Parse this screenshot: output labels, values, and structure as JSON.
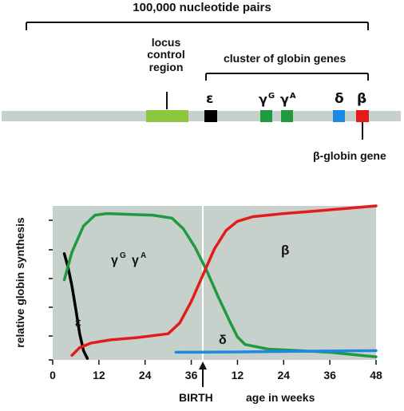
{
  "top_diagram": {
    "scale_label": "100,000 nucleotide pairs",
    "locus_control_label": [
      "locus",
      "control",
      "region"
    ],
    "cluster_label": "cluster of globin genes",
    "beta_globin_gene_label": "β-globin gene",
    "genes": [
      {
        "symbol": "ε",
        "superscript": "",
        "color": "#000000"
      },
      {
        "symbol": "γ",
        "superscript": "G",
        "color": "#1f9a3e"
      },
      {
        "symbol": "γ",
        "superscript": "A",
        "color": "#1f9a3e"
      },
      {
        "symbol": "δ",
        "superscript": "",
        "color": "#1e88e5"
      },
      {
        "symbol": "β",
        "superscript": "",
        "color": "#e41b1b"
      }
    ],
    "locus_color": "#8dc63f",
    "dna_color": "#c7d1cc"
  },
  "chart": {
    "y_axis_label": "relative globin synthesis",
    "birth_label": "BIRTH",
    "age_label": "age in weeks",
    "annotations": {
      "gamma_g_symbol": "γ",
      "gamma_g_sup": "G",
      "gamma_a_symbol": "γ",
      "gamma_a_sup": "A",
      "beta_symbol": "β",
      "delta_symbol": "δ",
      "epsilon_symbol": "ε"
    }
  },
  "chart_data": {
    "type": "line",
    "xlabel": "age in weeks",
    "ylabel": "relative globin synthesis",
    "xlim": [
      0,
      84
    ],
    "ylim": [
      0,
      100
    ],
    "x_tick_labels": [
      "0",
      "12",
      "24",
      "36",
      "12",
      "24",
      "36",
      "48"
    ],
    "birth_marker_week": 36,
    "series": [
      {
        "name": "ε",
        "color": "#000000",
        "points": [
          [
            3,
            69
          ],
          [
            4,
            60
          ],
          [
            5,
            48
          ],
          [
            6,
            33
          ],
          [
            7,
            17
          ],
          [
            8,
            6
          ],
          [
            9,
            1
          ]
        ]
      },
      {
        "name": "γG γA",
        "color": "#1f9a3e",
        "points": [
          [
            3,
            52
          ],
          [
            5,
            70
          ],
          [
            8,
            87
          ],
          [
            11,
            94
          ],
          [
            14,
            95
          ],
          [
            20,
            94.5
          ],
          [
            26,
            94
          ],
          [
            31,
            92
          ],
          [
            34,
            85
          ],
          [
            37,
            73
          ],
          [
            40,
            58
          ],
          [
            43,
            41
          ],
          [
            46,
            25
          ],
          [
            48,
            15
          ],
          [
            50,
            10
          ],
          [
            56,
            7
          ],
          [
            64,
            6
          ],
          [
            72,
            5
          ],
          [
            80,
            3
          ],
          [
            84,
            2
          ]
        ]
      },
      {
        "name": "β",
        "color": "#e41b1b",
        "points": [
          [
            5,
            3
          ],
          [
            7,
            8
          ],
          [
            10,
            11
          ],
          [
            15,
            13
          ],
          [
            22,
            14.5
          ],
          [
            30,
            17
          ],
          [
            33,
            24
          ],
          [
            36,
            38
          ],
          [
            39,
            55
          ],
          [
            42,
            72
          ],
          [
            45,
            84
          ],
          [
            48,
            90
          ],
          [
            52,
            93
          ],
          [
            60,
            95
          ],
          [
            70,
            97
          ],
          [
            84,
            100
          ]
        ]
      },
      {
        "name": "δ",
        "color": "#1e88e5",
        "points": [
          [
            32,
            5
          ],
          [
            48,
            5.2
          ],
          [
            60,
            5.5
          ],
          [
            72,
            5.8
          ],
          [
            84,
            6
          ]
        ]
      }
    ]
  }
}
